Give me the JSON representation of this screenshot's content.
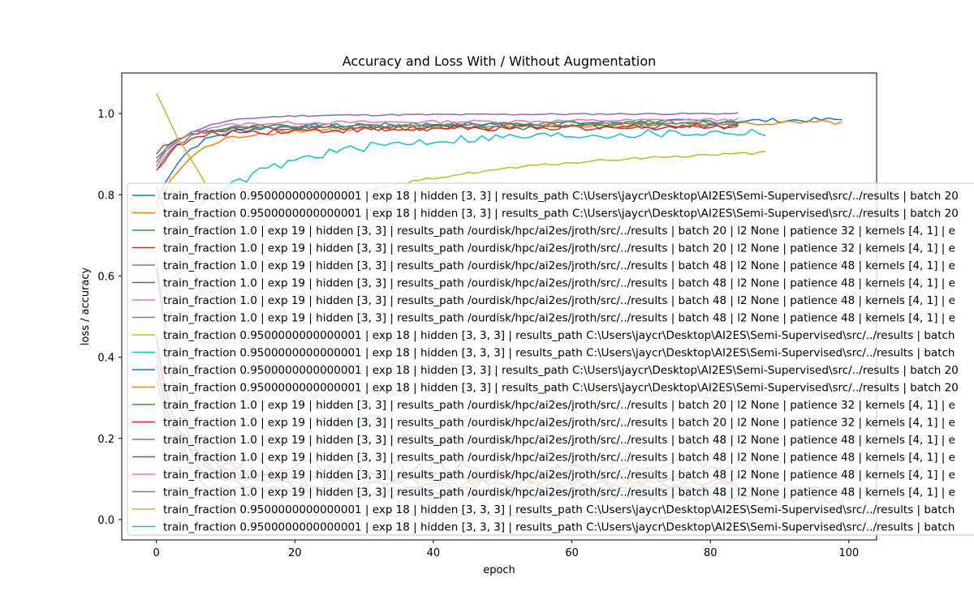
{
  "chart_data": {
    "type": "line",
    "title": "Accuracy and Loss With / Without Augmentation",
    "xlabel": "epoch",
    "ylabel": "loss / accuracy",
    "xlim": [
      -5,
      104
    ],
    "ylim": [
      -0.05,
      1.1
    ],
    "xticks": [
      0,
      20,
      40,
      60,
      80,
      100
    ],
    "yticks": [
      0.0,
      0.2,
      0.4,
      0.6,
      0.8,
      1.0
    ],
    "legend_position": "center-left",
    "colors": [
      "#1f77b4",
      "#ff7f0e",
      "#2ca02c",
      "#d62728",
      "#9467bd",
      "#8c564b",
      "#e377c2",
      "#7f7f7f",
      "#bcbd22",
      "#17becf"
    ],
    "series": [
      {
        "name": "train_fraction 0.9500000000000001 | exp 18 | hidden [3, 3] | results_path C:\\Users\\jaycr\\Desktop\\AI2ES\\Semi-Supervised\\src/../results | batch 20",
        "kind": "accuracy",
        "epochs": 100,
        "start": 0.78,
        "plateau": 0.965,
        "end": 0.985,
        "rate": 0.25,
        "noise": 0.006
      },
      {
        "name": "train_fraction 0.9500000000000001 | exp 18 | hidden [3, 3] | results_path C:\\Users\\jaycr\\Desktop\\AI2ES\\Semi-Supervised\\src/../results | batch 20",
        "kind": "accuracy",
        "epochs": 100,
        "start": 0.76,
        "plateau": 0.955,
        "end": 0.978,
        "rate": 0.22,
        "noise": 0.006
      },
      {
        "name": "train_fraction 1.0 | exp 19 | hidden [3, 3] | results_path /ourdisk/hpc/ai2es/jroth/src/../results | batch 20 | l2 None | patience 32 | kernels [4, 1] | e",
        "kind": "accuracy",
        "epochs": 85,
        "start": 0.89,
        "plateau": 0.965,
        "end": 0.98,
        "rate": 0.3,
        "noise": 0.006
      },
      {
        "name": "train_fraction 1.0 | exp 19 | hidden [3, 3] | results_path /ourdisk/hpc/ai2es/jroth/src/../results | batch 20 | l2 None | patience 32 | kernels [4, 1] | e",
        "kind": "accuracy",
        "epochs": 85,
        "start": 0.86,
        "plateau": 0.955,
        "end": 0.97,
        "rate": 0.3,
        "noise": 0.008
      },
      {
        "name": "train_fraction 1.0 | exp 19 | hidden [3, 3] | results_path /ourdisk/hpc/ai2es/jroth/src/../results | batch 48 | l2 None | patience 48 | kernels [4, 1] | e",
        "kind": "accuracy",
        "epochs": 85,
        "start": 0.88,
        "plateau": 0.995,
        "end": 1.0,
        "rate": 0.2,
        "noise": 0.002
      },
      {
        "name": "train_fraction 1.0 | exp 19 | hidden [3, 3] | results_path /ourdisk/hpc/ai2es/jroth/src/../results | batch 48 | l2 None | patience 48 | kernels [4, 1] | e",
        "kind": "accuracy",
        "epochs": 85,
        "start": 0.9,
        "plateau": 0.96,
        "end": 0.97,
        "rate": 0.35,
        "noise": 0.007
      },
      {
        "name": "train_fraction 1.0 | exp 19 | hidden [3, 3] | results_path /ourdisk/hpc/ai2es/jroth/src/../results | batch 48 | l2 None | patience 48 | kernels [4, 1] | e",
        "kind": "accuracy",
        "epochs": 85,
        "start": 0.87,
        "plateau": 0.975,
        "end": 0.985,
        "rate": 0.3,
        "noise": 0.004
      },
      {
        "name": "train_fraction 1.0 | exp 19 | hidden [3, 3] | results_path /ourdisk/hpc/ai2es/jroth/src/../results | batch 48 | l2 None | patience 48 | kernels [4, 1] | e",
        "kind": "accuracy",
        "epochs": 85,
        "start": 0.86,
        "plateau": 0.965,
        "end": 0.975,
        "rate": 0.3,
        "noise": 0.005
      },
      {
        "name": "train_fraction 0.9500000000000001 | exp 18 | hidden [3, 3, 3] | results_path C:\\Users\\jaycr\\Desktop\\AI2ES\\Semi-Supervised\\src/../results | batch",
        "kind": "accuracy",
        "epochs": 89,
        "start": 0.56,
        "plateau": 0.88,
        "end": 0.91,
        "rate": 0.045,
        "noise": 0.003
      },
      {
        "name": "train_fraction 0.9500000000000001 | exp 18 | hidden [3, 3, 3] | results_path C:\\Users\\jaycr\\Desktop\\AI2ES\\Semi-Supervised\\src/../results | batch",
        "kind": "accuracy",
        "epochs": 89,
        "start": 0.66,
        "plateau": 0.935,
        "end": 0.955,
        "rate": 0.08,
        "noise": 0.011
      },
      {
        "name": "train_fraction 0.9500000000000001 | exp 18 | hidden [3, 3] | results_path C:\\Users\\jaycr\\Desktop\\AI2ES\\Semi-Supervised\\src/../results | batch 20",
        "kind": "loss",
        "epochs": 100,
        "start": 0.62,
        "plateau": 0.08,
        "end": 0.05,
        "rate": 0.3,
        "noise": 0.012
      },
      {
        "name": "train_fraction 0.9500000000000001 | exp 18 | hidden [3, 3] | results_path C:\\Users\\jaycr\\Desktop\\AI2ES\\Semi-Supervised\\src/../results | batch 20",
        "kind": "loss",
        "epochs": 100,
        "start": 0.64,
        "plateau": 0.11,
        "end": 0.08,
        "rate": 0.28,
        "noise": 0.012
      },
      {
        "name": "train_fraction 1.0 | exp 19 | hidden [3, 3] | results_path /ourdisk/hpc/ai2es/jroth/src/../results | batch 20 | l2 None | patience 32 | kernels [4, 1] | e",
        "kind": "loss",
        "epochs": 85,
        "start": 0.38,
        "plateau": 0.1,
        "end": 0.07,
        "rate": 0.35,
        "noise": 0.015
      },
      {
        "name": "train_fraction 1.0 | exp 19 | hidden [3, 3] | results_path /ourdisk/hpc/ai2es/jroth/src/../results | batch 20 | l2 None | patience 32 | kernels [4, 1] | e",
        "kind": "loss",
        "epochs": 85,
        "start": 0.45,
        "plateau": 0.12,
        "end": 0.09,
        "rate": 0.35,
        "noise": 0.016
      },
      {
        "name": "train_fraction 1.0 | exp 19 | hidden [3, 3] | results_path /ourdisk/hpc/ai2es/jroth/src/../results | batch 48 | l2 None | patience 48 | kernels [4, 1] | e",
        "kind": "loss",
        "epochs": 85,
        "start": 0.4,
        "plateau": 0.015,
        "end": 0.005,
        "rate": 0.25,
        "noise": 0.004
      },
      {
        "name": "train_fraction 1.0 | exp 19 | hidden [3, 3] | results_path /ourdisk/hpc/ai2es/jroth/src/../results | batch 48 | l2 None | patience 48 | kernels [4, 1] | e",
        "kind": "loss",
        "epochs": 85,
        "start": 0.35,
        "plateau": 0.14,
        "end": 0.11,
        "rate": 0.35,
        "noise": 0.02
      },
      {
        "name": "train_fraction 1.0 | exp 19 | hidden [3, 3] | results_path /ourdisk/hpc/ai2es/jroth/src/../results | batch 48 | l2 None | patience 48 | kernels [4, 1] | e",
        "kind": "loss",
        "epochs": 85,
        "start": 0.4,
        "plateau": 0.07,
        "end": 0.05,
        "rate": 0.32,
        "noise": 0.01
      },
      {
        "name": "train_fraction 1.0 | exp 19 | hidden [3, 3] | results_path /ourdisk/hpc/ai2es/jroth/src/../results | batch 48 | l2 None | patience 48 | kernels [4, 1] | e",
        "kind": "loss",
        "epochs": 85,
        "start": 0.42,
        "plateau": 0.1,
        "end": 0.08,
        "rate": 0.32,
        "noise": 0.012
      },
      {
        "name": "train_fraction 0.9500000000000001 | exp 18 | hidden [3, 3, 3] | results_path C:\\Users\\jaycr\\Desktop\\AI2ES\\Semi-Supervised\\src/../results | batch",
        "kind": "loss",
        "epochs": 89,
        "start": 1.05,
        "plateau": 0.32,
        "end": 0.28,
        "rate": 0.05,
        "noise": 0.006
      },
      {
        "name": "train_fraction 0.9500000000000001 | exp 18 | hidden [3, 3, 3] | results_path C:\\Users\\jaycr\\Desktop\\AI2ES\\Semi-Supervised\\src/../results | batch",
        "kind": "loss",
        "epochs": 89,
        "start": 0.82,
        "plateau": 0.18,
        "end": 0.13,
        "rate": 0.07,
        "noise": 0.03
      }
    ]
  }
}
